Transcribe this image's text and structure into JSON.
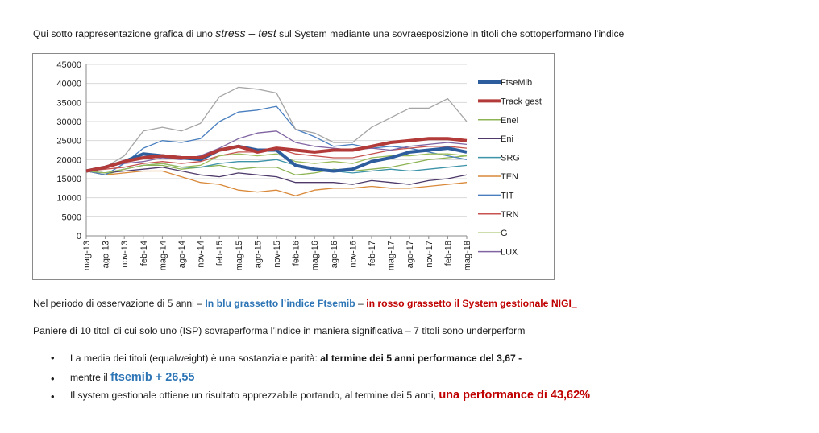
{
  "intro": {
    "prefix": "Qui sotto rappresentazione grafica di uno ",
    "stress": "stress",
    "dash": " – ",
    "test": "test",
    "suffix": " sul System mediante una sovraesposizione in titoli che sottoperformano l’indice"
  },
  "chart_data": {
    "type": "line",
    "title": "",
    "xlabel": "",
    "ylabel": "",
    "ylim": [
      0,
      45000
    ],
    "yticks": [
      0,
      5000,
      10000,
      15000,
      20000,
      25000,
      30000,
      35000,
      40000,
      45000
    ],
    "grid": true,
    "legend_position": "right",
    "x": [
      "mag-13",
      "ago-13",
      "nov-13",
      "feb-14",
      "mag-14",
      "ago-14",
      "nov-14",
      "feb-15",
      "mag-15",
      "ago-15",
      "nov-15",
      "feb-16",
      "mag-16",
      "ago-16",
      "nov-16",
      "feb-17",
      "mag-17",
      "ago-17",
      "nov-17",
      "feb-18",
      "mag-18"
    ],
    "series": [
      {
        "name": "FtseMib",
        "color": "#2e5d9e",
        "bold": true,
        "values": [
          17000,
          18000,
          19500,
          21500,
          21000,
          20500,
          20000,
          22500,
          23500,
          22500,
          22500,
          18500,
          17500,
          17000,
          17500,
          19500,
          20500,
          22000,
          22500,
          23000,
          22000
        ]
      },
      {
        "name": "Track gest",
        "color": "#b23a38",
        "bold": true,
        "values": [
          17000,
          18000,
          19500,
          20500,
          21000,
          20500,
          20500,
          22500,
          23500,
          22000,
          23000,
          22500,
          22000,
          22500,
          22500,
          23500,
          24500,
          25000,
          25500,
          25500,
          25000
        ]
      },
      {
        "name": "Enel",
        "color": "#8db354",
        "bold": false,
        "values": [
          17000,
          16000,
          17500,
          18500,
          18500,
          17500,
          18000,
          18500,
          17500,
          18000,
          18000,
          16000,
          16500,
          17500,
          17000,
          17500,
          18000,
          19000,
          20000,
          20500,
          21000
        ]
      },
      {
        "name": "Eni",
        "color": "#4e3a6a",
        "bold": false,
        "values": [
          17000,
          16500,
          17000,
          17500,
          18000,
          17000,
          16000,
          15500,
          16500,
          16000,
          15500,
          14000,
          14000,
          14000,
          13500,
          14500,
          14000,
          13500,
          14500,
          15000,
          16000
        ]
      },
      {
        "name": "SRG",
        "color": "#3d93a8",
        "bold": false,
        "values": [
          17000,
          16500,
          17500,
          18500,
          19000,
          18000,
          18000,
          19000,
          19500,
          19500,
          20000,
          18500,
          17500,
          17000,
          16500,
          17000,
          17500,
          17000,
          17500,
          18000,
          18500
        ]
      },
      {
        "name": "TEN",
        "color": "#d9893a",
        "bold": false,
        "values": [
          17000,
          16000,
          16500,
          17000,
          17000,
          15500,
          14000,
          13500,
          12000,
          11500,
          12000,
          10500,
          12000,
          12500,
          12500,
          13000,
          12500,
          12500,
          13000,
          13500,
          14000
        ]
      },
      {
        "name": "TIT",
        "color": "#4a7fbf",
        "bold": false,
        "values": [
          17000,
          16000,
          19000,
          23000,
          25000,
          24500,
          25500,
          30000,
          32500,
          33000,
          34000,
          28000,
          26000,
          23500,
          24000,
          23000,
          23500,
          23000,
          22000,
          21000,
          20000
        ]
      },
      {
        "name": "TRN",
        "color": "#c6534f",
        "bold": false,
        "values": [
          17000,
          17500,
          18000,
          19000,
          19500,
          19000,
          19500,
          21000,
          22000,
          22000,
          23000,
          21500,
          21000,
          20500,
          20500,
          21500,
          22500,
          23000,
          23500,
          23500,
          23000
        ]
      },
      {
        "name": "G",
        "color": "#9bbb59",
        "bold": false,
        "values": [
          17000,
          16500,
          17500,
          18500,
          19000,
          18000,
          18500,
          21000,
          21500,
          21000,
          21500,
          19500,
          19000,
          19500,
          19000,
          20500,
          21000,
          21000,
          21500,
          21500,
          21000
        ]
      },
      {
        "name": "LUX",
        "color": "#8064a2",
        "bold": false,
        "values": [
          17000,
          18000,
          19000,
          19500,
          20500,
          20000,
          21000,
          23000,
          25500,
          27000,
          27500,
          24500,
          23500,
          23000,
          22500,
          23000,
          22500,
          23500,
          24000,
          24500,
          24000
        ]
      },
      {
        "name": "",
        "color": "#a5a5a5",
        "bold": false,
        "values": [
          17000,
          18000,
          21000,
          27500,
          28500,
          27500,
          29500,
          36500,
          39000,
          38500,
          37500,
          28000,
          27000,
          24500,
          24500,
          28500,
          31000,
          33500,
          33500,
          36000,
          30000
        ]
      }
    ]
  },
  "paragraph1": {
    "prefix": "Nel periodo di osservazione di 5 anni – ",
    "blue": "In blu grassetto l’indice Ftsemib",
    "dash": " – ",
    "red": "in rosso grassetto il System gestionale NIGI_"
  },
  "paragraph2": "Paniere di 10 titoli di cui solo uno (ISP) sovraperforma l’indice in maniera significativa – 7 titoli sono underperform",
  "bullets": {
    "b1_text": "La media dei titoli (equalweight) è una sostanziale parità: ",
    "b1_bold": "al termine dei 5 anni performance del 3,67",
    "b1_tail": "  -",
    "b2_text": "mentre il ",
    "b2_blue": "ftsemib + 26,55",
    "b3_text": "Il system gestionale ottiene un risultato apprezzabile portando, al termine dei 5 anni, ",
    "b3_red": "una performance di 43,62%"
  }
}
